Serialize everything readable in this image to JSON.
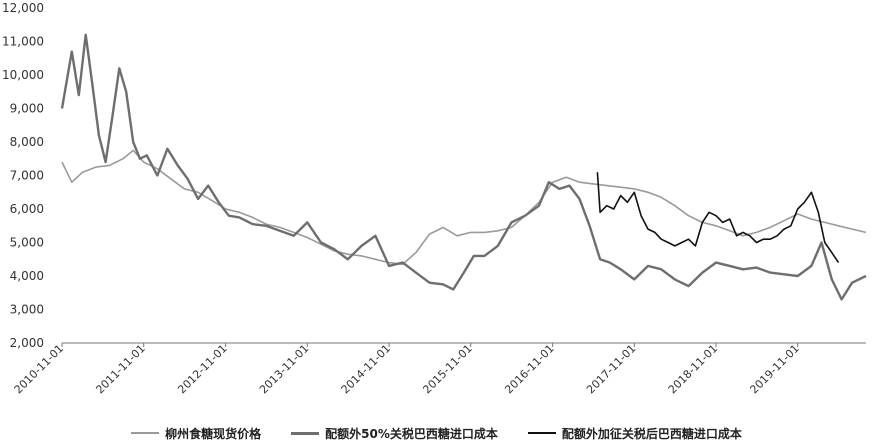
{
  "chart_data": {
    "type": "line",
    "title": "",
    "xlabel": "",
    "ylabel": "",
    "ylim": [
      2000,
      12000
    ],
    "yticks": [
      "2,000",
      "3,000",
      "4,000",
      "5,000",
      "6,000",
      "7,000",
      "8,000",
      "9,000",
      "10,000",
      "11,000",
      "12,000"
    ],
    "xlim": [
      "2010-11-01",
      "2020-09-01"
    ],
    "xticks": [
      "2010-11-01",
      "2011-11-01",
      "2012-11-01",
      "2013-11-01",
      "2014-11-01",
      "2015-11-01",
      "2016-11-01",
      "2017-11-01",
      "2018-11-01",
      "2019-11-01"
    ],
    "grid": false,
    "legend_position": "bottom",
    "series": [
      {
        "name": "柳州食糖现货价格",
        "color": "#9a9a9a",
        "x": [
          "2010-11-01",
          "2010-12-15",
          "2011-02-01",
          "2011-04-01",
          "2011-06-01",
          "2011-08-01",
          "2011-09-15",
          "2011-11-01",
          "2012-01-01",
          "2012-03-01",
          "2012-05-01",
          "2012-07-01",
          "2012-09-01",
          "2012-11-01",
          "2013-01-01",
          "2013-03-01",
          "2013-05-01",
          "2013-07-01",
          "2013-09-01",
          "2013-11-01",
          "2014-01-01",
          "2014-03-01",
          "2014-05-01",
          "2014-07-01",
          "2014-09-01",
          "2014-11-01",
          "2015-01-01",
          "2015-03-01",
          "2015-05-01",
          "2015-07-01",
          "2015-09-01",
          "2015-11-01",
          "2016-01-01",
          "2016-03-01",
          "2016-05-01",
          "2016-07-01",
          "2016-09-01",
          "2016-11-01",
          "2017-01-01",
          "2017-03-01",
          "2017-05-01",
          "2017-07-01",
          "2017-09-01",
          "2017-11-01",
          "2018-01-01",
          "2018-03-01",
          "2018-05-01",
          "2018-07-01",
          "2018-09-01",
          "2018-11-01",
          "2019-01-01",
          "2019-03-01",
          "2019-05-01",
          "2019-07-01",
          "2019-09-01",
          "2019-11-01",
          "2020-01-01",
          "2020-03-01",
          "2020-05-01",
          "2020-07-01",
          "2020-09-01"
        ],
        "values": [
          7400,
          6800,
          7100,
          7250,
          7300,
          7500,
          7750,
          7400,
          7200,
          6900,
          6600,
          6500,
          6250,
          6000,
          5900,
          5750,
          5550,
          5450,
          5300,
          5150,
          4950,
          4750,
          4650,
          4600,
          4500,
          4400,
          4350,
          4700,
          5250,
          5450,
          5200,
          5300,
          5300,
          5350,
          5450,
          5800,
          6200,
          6800,
          6950,
          6800,
          6750,
          6700,
          6650,
          6600,
          6500,
          6350,
          6100,
          5800,
          5600,
          5500,
          5350,
          5200,
          5300,
          5450,
          5650,
          5850,
          5700,
          5600,
          5500,
          5400,
          5300
        ]
      },
      {
        "name": "配额外50%关税巴西糖进口成本",
        "color": "#6e6e6e",
        "x": [
          "2010-11-01",
          "2010-12-15",
          "2011-01-15",
          "2011-02-15",
          "2011-03-15",
          "2011-04-15",
          "2011-05-15",
          "2011-06-15",
          "2011-07-15",
          "2011-08-15",
          "2011-09-15",
          "2011-10-15",
          "2011-11-15",
          "2012-01-01",
          "2012-02-15",
          "2012-04-01",
          "2012-05-15",
          "2012-07-01",
          "2012-08-15",
          "2012-10-01",
          "2012-11-15",
          "2013-01-01",
          "2013-03-01",
          "2013-05-01",
          "2013-07-01",
          "2013-09-01",
          "2013-11-01",
          "2014-01-01",
          "2014-03-01",
          "2014-05-01",
          "2014-07-01",
          "2014-09-01",
          "2014-11-01",
          "2015-01-01",
          "2015-03-01",
          "2015-05-01",
          "2015-07-01",
          "2015-08-15",
          "2015-10-01",
          "2015-11-15",
          "2016-01-01",
          "2016-03-01",
          "2016-05-01",
          "2016-07-01",
          "2016-09-01",
          "2016-10-15",
          "2016-12-01",
          "2017-01-15",
          "2017-03-01",
          "2017-04-15",
          "2017-06-01",
          "2017-07-15",
          "2017-09-01",
          "2017-11-01",
          "2018-01-01",
          "2018-03-01",
          "2018-05-01",
          "2018-07-01",
          "2018-09-01",
          "2018-11-01",
          "2019-01-01",
          "2019-03-01",
          "2019-05-01",
          "2019-07-01",
          "2019-09-01",
          "2019-11-01",
          "2020-01-01",
          "2020-02-15",
          "2020-04-01",
          "2020-05-15",
          "2020-07-01",
          "2020-09-01"
        ],
        "values": [
          9000,
          10700,
          9400,
          11200,
          9800,
          8200,
          7400,
          8800,
          10200,
          9500,
          8000,
          7500,
          7600,
          7000,
          7800,
          7300,
          6900,
          6300,
          6700,
          6200,
          5800,
          5750,
          5550,
          5500,
          5350,
          5200,
          5600,
          5000,
          4800,
          4500,
          4900,
          5200,
          4300,
          4400,
          4100,
          3800,
          3750,
          3600,
          4100,
          4600,
          4600,
          4900,
          5600,
          5800,
          6100,
          6800,
          6600,
          6700,
          6300,
          5500,
          4500,
          4400,
          4200,
          3900,
          4300,
          4200,
          3900,
          3700,
          4100,
          4400,
          4300,
          4200,
          4250,
          4100,
          4050,
          4000,
          4300,
          5000,
          3900,
          3300,
          3800,
          4000
        ]
      },
      {
        "name": "配额外加征关税后巴西糖进口成本",
        "color": "#111111",
        "x": [
          "2017-05-20",
          "2017-06-01",
          "2017-07-01",
          "2017-08-01",
          "2017-09-01",
          "2017-10-01",
          "2017-11-01",
          "2017-12-01",
          "2018-01-01",
          "2018-02-01",
          "2018-03-01",
          "2018-04-01",
          "2018-05-01",
          "2018-06-01",
          "2018-07-01",
          "2018-08-01",
          "2018-09-01",
          "2018-10-01",
          "2018-11-01",
          "2018-12-01",
          "2019-01-01",
          "2019-02-01",
          "2019-03-01",
          "2019-04-01",
          "2019-05-01",
          "2019-06-01",
          "2019-07-01",
          "2019-08-01",
          "2019-09-01",
          "2019-10-01",
          "2019-11-01",
          "2019-12-01",
          "2020-01-01",
          "2020-02-01",
          "2020-03-01",
          "2020-04-01",
          "2020-05-01"
        ],
        "values": [
          7100,
          5900,
          6100,
          6000,
          6400,
          6200,
          6500,
          5800,
          5400,
          5300,
          5100,
          5000,
          4900,
          5000,
          5100,
          4900,
          5600,
          5900,
          5800,
          5600,
          5700,
          5200,
          5300,
          5200,
          5000,
          5100,
          5100,
          5200,
          5400,
          5500,
          6000,
          6200,
          6500,
          5900,
          5000,
          4700,
          4400
        ]
      }
    ]
  }
}
